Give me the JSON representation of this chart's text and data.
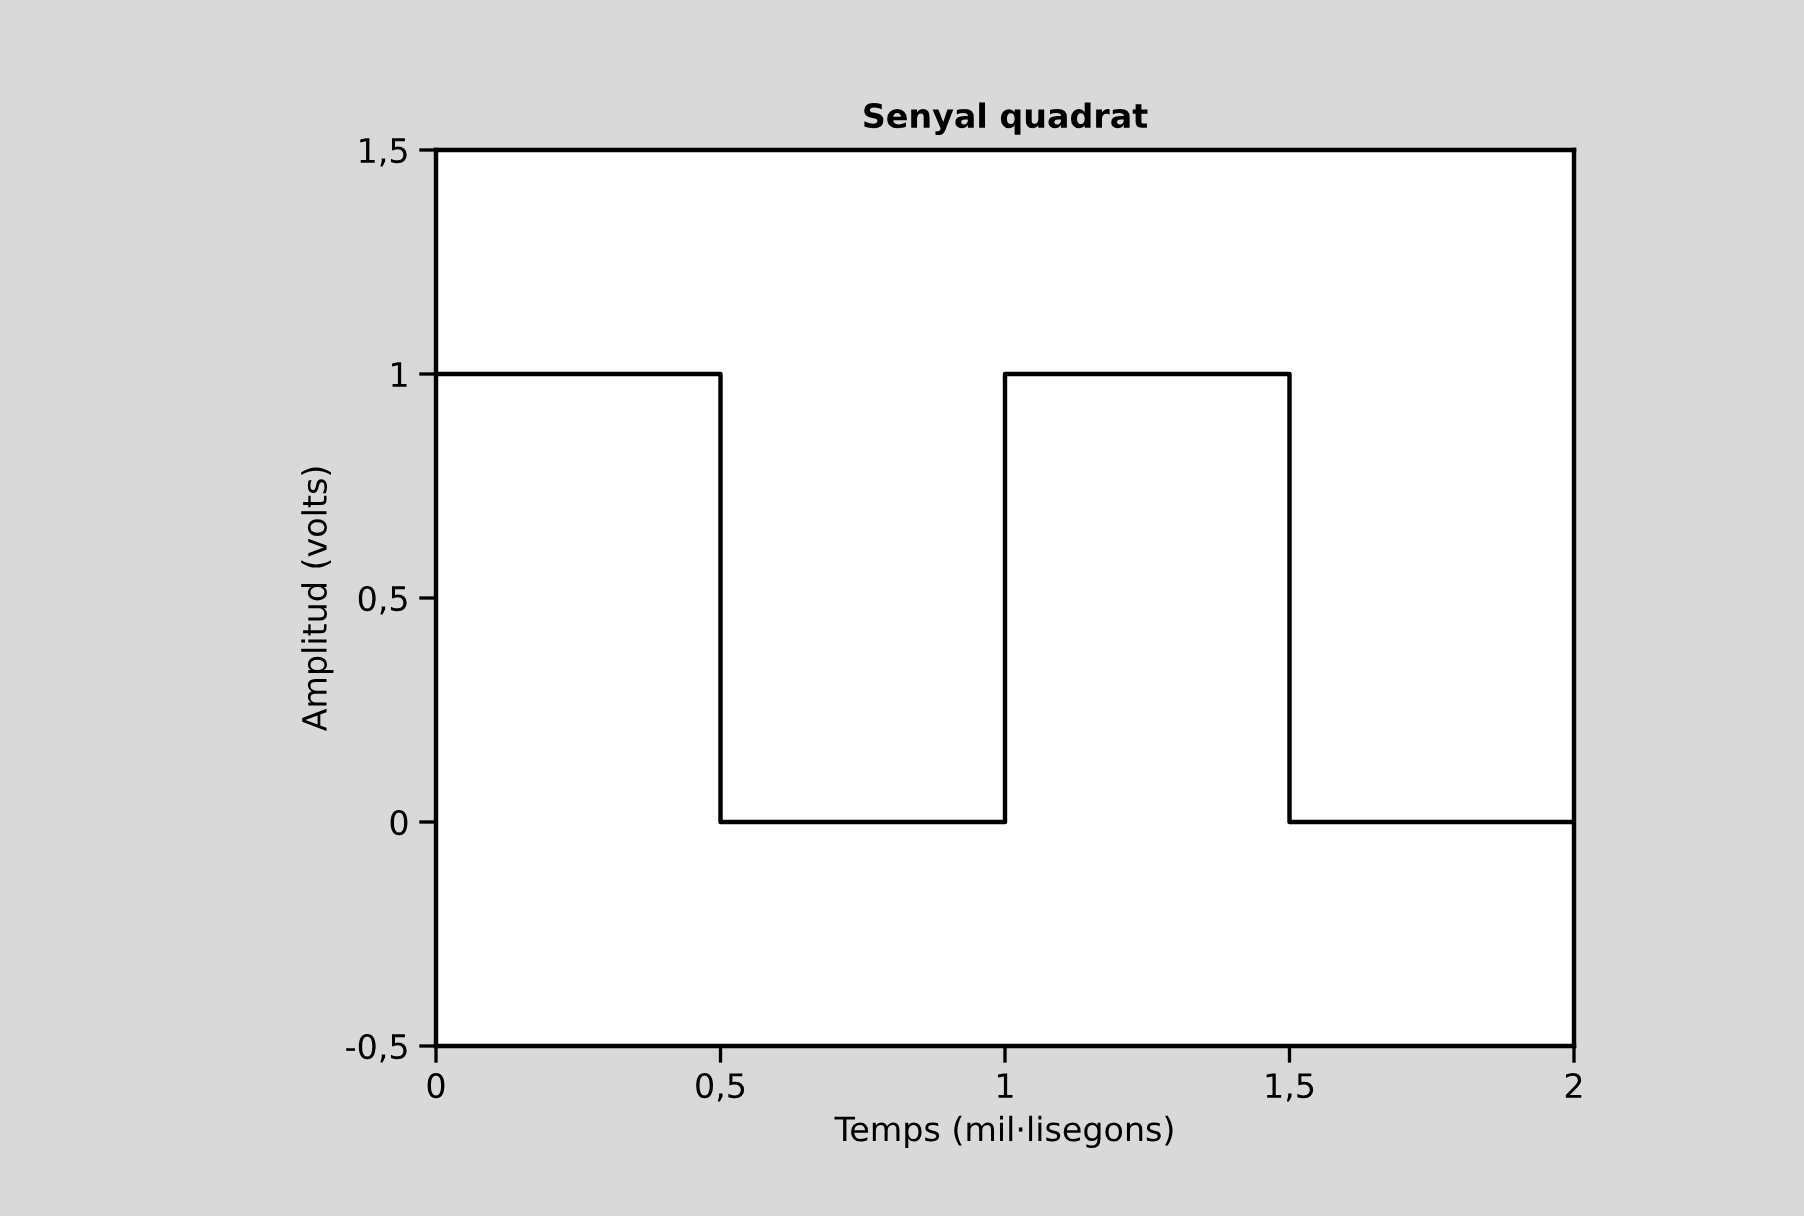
{
  "chart_data": {
    "type": "step",
    "title": "Senyal quadrat",
    "xlabel": "Temps (mil·lisegons)",
    "ylabel": "Amplitud (volts)",
    "x": [
      0,
      0.5,
      1,
      1.5,
      2
    ],
    "series": [
      {
        "color": "#000000",
        "values": [
          1,
          0,
          1,
          0,
          0
        ]
      }
    ],
    "xlim": [
      0,
      2
    ],
    "ylim": [
      -0.5,
      1.5
    ],
    "xticks": [
      0,
      {
        "value": 0.5,
        "label": "0,5"
      },
      1,
      {
        "value": 1.5,
        "label": "1,5"
      },
      2
    ],
    "yticks": [
      {
        "value": -0.5,
        "label": "-0,5"
      },
      0,
      {
        "value": 0.5,
        "label": "0,5"
      },
      1,
      {
        "value": 1.5,
        "label": "1,5"
      }
    ],
    "grid": false,
    "legend": false,
    "marker": "none",
    "line_style": "solid"
  }
}
